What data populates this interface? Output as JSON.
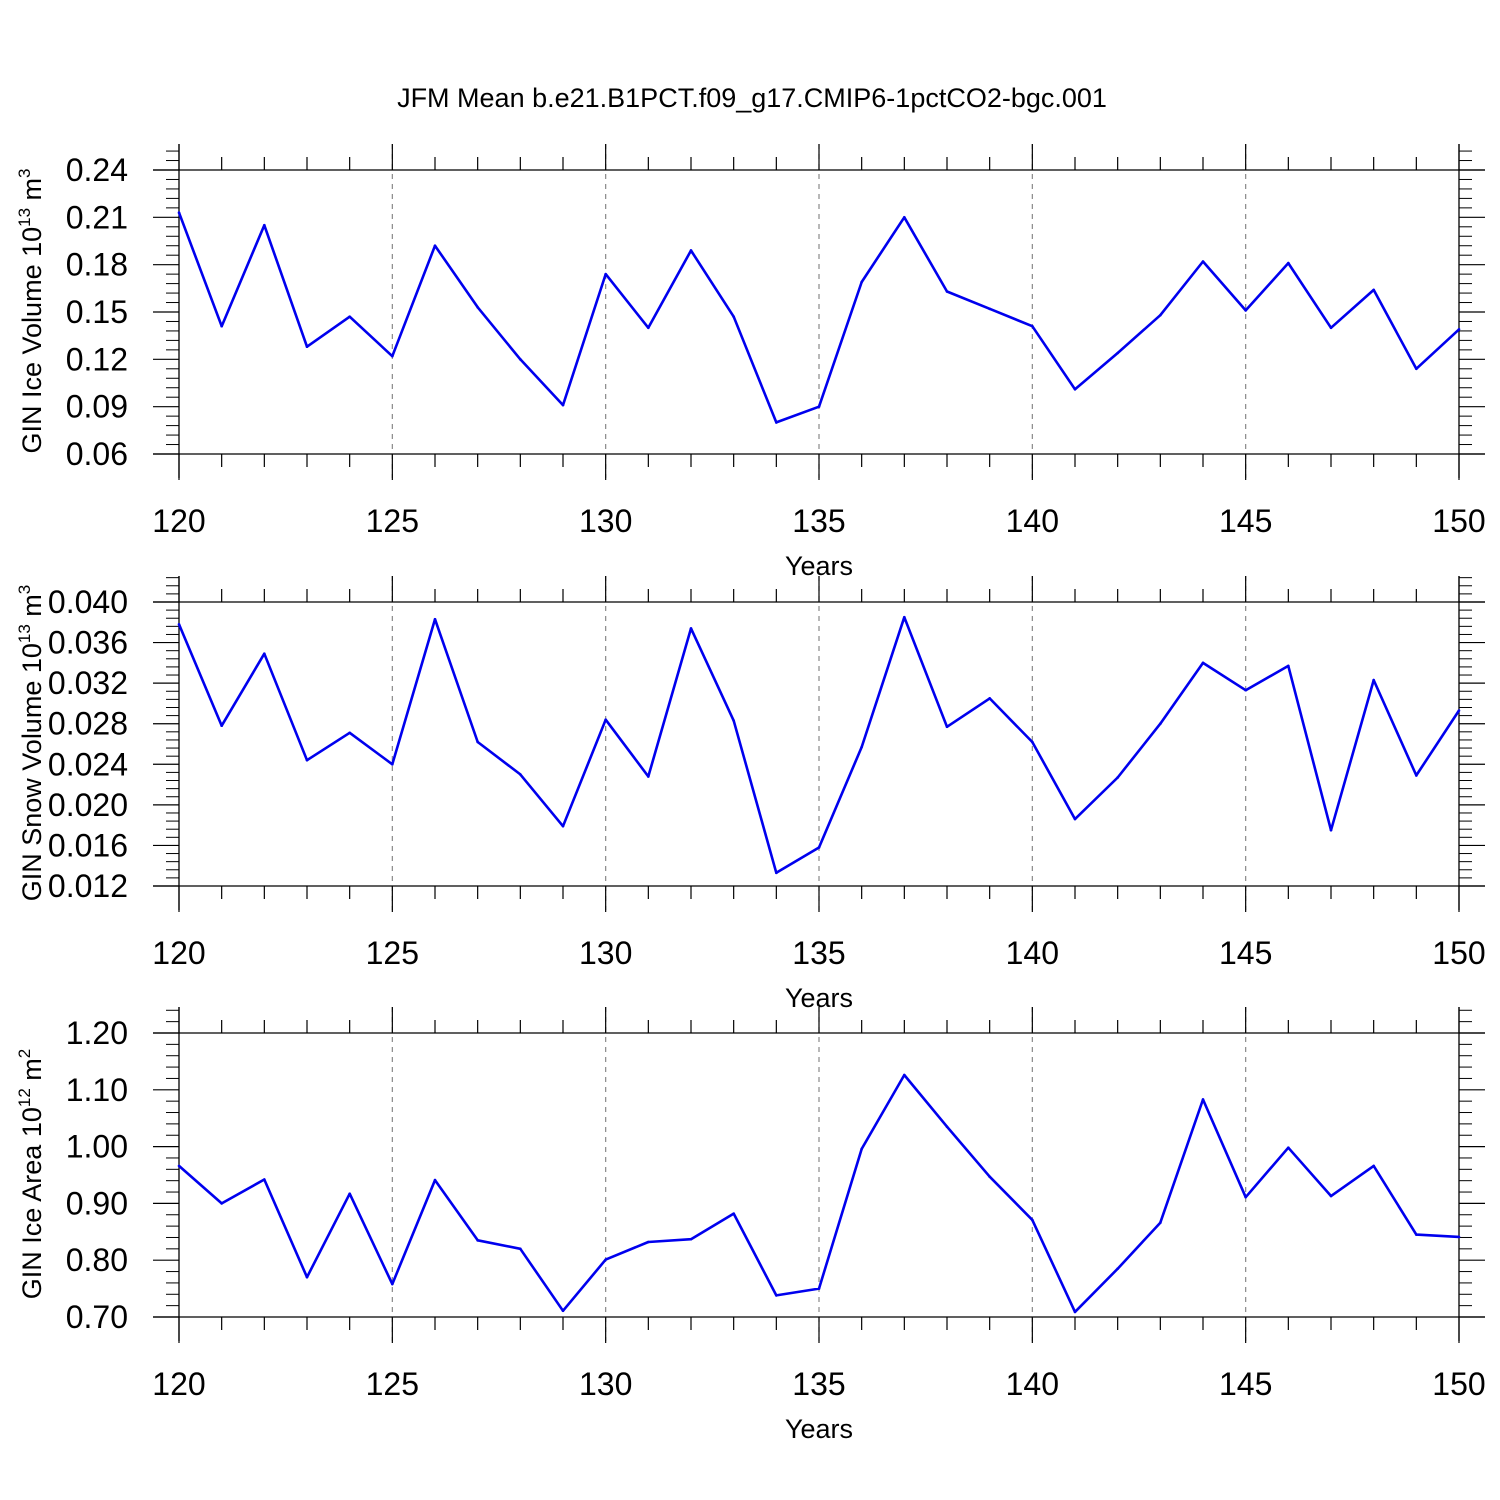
{
  "title": "JFM Mean b.e21.B1PCT.f09_g17.CMIP6-1pctCO2-bgc.001",
  "colors": {
    "line": "#0000ee",
    "axis": "#000000",
    "grid": "#888888"
  },
  "chart_data": [
    {
      "type": "line",
      "xlabel": "Years",
      "ylabel": {
        "name": "GIN Ice Volume 10",
        "exp": "13",
        "unit": " m",
        "unit_exp": "3"
      },
      "xlim": [
        120,
        150
      ],
      "ylim": [
        0.06,
        0.24
      ],
      "xticks": [
        "120",
        "125",
        "130",
        "135",
        "140",
        "145",
        "150"
      ],
      "yticks": [
        "0.06",
        "0.09",
        "0.12",
        "0.15",
        "0.18",
        "0.21",
        "0.24"
      ],
      "grid": "vertical dashed at major x ticks",
      "x": [
        120,
        121,
        122,
        123,
        124,
        125,
        126,
        127,
        128,
        129,
        130,
        131,
        132,
        133,
        134,
        135,
        136,
        137,
        138,
        139,
        140,
        141,
        142,
        143,
        144,
        145,
        146,
        147,
        148,
        149,
        150
      ],
      "values": [
        0.213,
        0.141,
        0.205,
        0.128,
        0.147,
        0.122,
        0.192,
        0.153,
        0.12,
        0.091,
        0.174,
        0.14,
        0.189,
        0.147,
        0.08,
        0.09,
        0.169,
        0.21,
        0.163,
        0.152,
        0.141,
        0.101,
        0.124,
        0.148,
        0.182,
        0.151,
        0.181,
        0.14,
        0.164,
        0.114,
        0.139
      ]
    },
    {
      "type": "line",
      "xlabel": "Years",
      "ylabel": {
        "name": "GIN Snow Volume 10",
        "exp": "13",
        "unit": " m",
        "unit_exp": "3"
      },
      "xlim": [
        120,
        150
      ],
      "ylim": [
        0.012,
        0.04
      ],
      "xticks": [
        "120",
        "125",
        "130",
        "135",
        "140",
        "145",
        "150"
      ],
      "yticks": [
        "0.012",
        "0.016",
        "0.020",
        "0.024",
        "0.028",
        "0.032",
        "0.036",
        "0.040"
      ],
      "grid": "vertical dashed at major x ticks",
      "x": [
        120,
        121,
        122,
        123,
        124,
        125,
        126,
        127,
        128,
        129,
        130,
        131,
        132,
        133,
        134,
        135,
        136,
        137,
        138,
        139,
        140,
        141,
        142,
        143,
        144,
        145,
        146,
        147,
        148,
        149,
        150
      ],
      "values": [
        0.0378,
        0.0278,
        0.0349,
        0.0244,
        0.0271,
        0.024,
        0.0383,
        0.0262,
        0.023,
        0.0179,
        0.0284,
        0.0228,
        0.0374,
        0.0283,
        0.0133,
        0.0158,
        0.0257,
        0.0385,
        0.0277,
        0.0305,
        0.0262,
        0.0186,
        0.0227,
        0.028,
        0.034,
        0.0313,
        0.0337,
        0.0175,
        0.0323,
        0.0229,
        0.0293
      ]
    },
    {
      "type": "line",
      "xlabel": "Years",
      "ylabel": {
        "name": "GIN Ice Area 10",
        "exp": "12",
        "unit": " m",
        "unit_exp": "2"
      },
      "xlim": [
        120,
        150
      ],
      "ylim": [
        0.7,
        1.2
      ],
      "xticks": [
        "120",
        "125",
        "130",
        "135",
        "140",
        "145",
        "150"
      ],
      "yticks": [
        "0.70",
        "0.80",
        "0.90",
        "1.00",
        "1.10",
        "1.20"
      ],
      "grid": "vertical dashed at major x ticks",
      "x": [
        120,
        121,
        122,
        123,
        124,
        125,
        126,
        127,
        128,
        129,
        130,
        131,
        132,
        133,
        134,
        135,
        136,
        137,
        138,
        139,
        140,
        141,
        142,
        143,
        144,
        145,
        146,
        147,
        148,
        149,
        150
      ],
      "values": [
        0.966,
        0.9,
        0.942,
        0.77,
        0.917,
        0.758,
        0.941,
        0.835,
        0.82,
        0.711,
        0.801,
        0.832,
        0.837,
        0.882,
        0.738,
        0.75,
        0.996,
        1.126,
        1.035,
        0.947,
        0.871,
        0.709,
        0.785,
        0.866,
        1.083,
        0.911,
        0.998,
        0.913,
        0.966,
        0.845,
        0.841
      ]
    }
  ]
}
